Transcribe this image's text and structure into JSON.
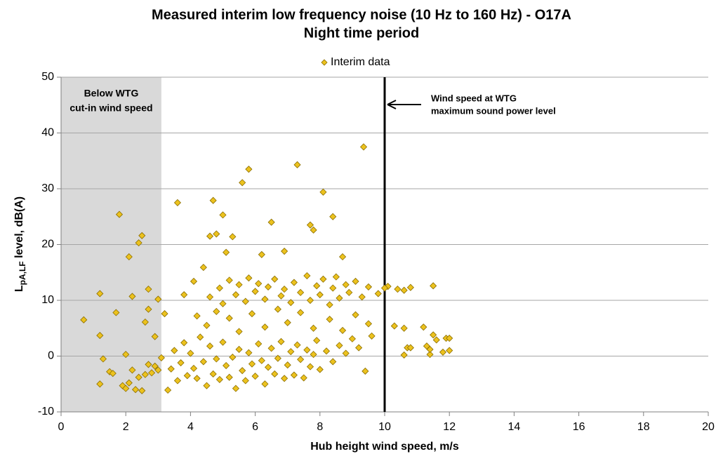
{
  "chart_data": {
    "type": "scatter",
    "title": "Measured interim low frequency noise (10 Hz to 160 Hz) - O17A",
    "subtitle": "Night time period",
    "xlabel": "Hub height wind speed, m/s",
    "ylabel_parts": [
      "L",
      "pA,LF",
      " level, dB(A)"
    ],
    "xlim": [
      0,
      20
    ],
    "ylim": [
      -10,
      50
    ],
    "xticks": [
      0,
      2,
      4,
      6,
      8,
      10,
      12,
      14,
      16,
      18,
      20
    ],
    "yticks": [
      -10,
      0,
      10,
      20,
      30,
      40,
      50
    ],
    "grid": true,
    "legend": "top",
    "shaded_region": [
      0,
      3.1
    ],
    "shaded_color": "#d9d9d9",
    "shaded_label": [
      "Below WTG",
      "cut-in wind speed"
    ],
    "reference_line_x": 10,
    "reference_label": [
      "Wind speed at WTG",
      "maximum sound power level"
    ],
    "x": [
      0.7,
      1.2,
      1.2,
      1.2,
      1.3,
      1.7,
      1.8,
      2.0,
      2.1,
      2.2,
      2.4,
      2.5,
      2.6,
      2.7,
      2.7,
      2.9,
      3.0,
      3.2,
      3.6,
      4.4,
      4.6,
      4.7,
      4.8,
      5.0,
      5.1,
      5.3,
      5.6,
      5.8,
      6.2,
      6.5,
      6.9,
      7.3,
      7.7,
      7.8,
      8.1,
      8.4,
      8.7,
      9.35,
      9.4,
      10.1,
      10.4,
      10.6,
      10.8,
      11.5,
      10.3,
      10.6,
      10.6,
      10.7,
      10.8,
      11.2,
      11.3,
      11.4,
      11.5,
      11.6,
      11.8,
      11.9,
      12.0,
      12.0,
      11.4,
      1.5,
      1.6,
      1.9,
      2.0,
      2.1,
      2.2,
      2.3,
      2.4,
      2.5,
      2.6,
      2.7,
      2.8,
      2.9,
      3.0,
      3.1,
      3.3,
      3.4,
      3.5,
      3.6,
      3.7,
      3.8,
      3.9,
      4.0,
      4.1,
      4.2,
      4.3,
      4.4,
      4.5,
      4.6,
      4.7,
      4.8,
      4.9,
      5.0,
      5.1,
      5.2,
      5.3,
      5.4,
      5.5,
      5.6,
      5.7,
      5.8,
      5.9,
      6.0,
      6.1,
      6.2,
      6.3,
      6.4,
      6.5,
      6.6,
      6.7,
      6.8,
      6.9,
      7.0,
      7.1,
      7.2,
      7.3,
      7.4,
      7.5,
      7.6,
      7.7,
      7.8,
      7.9,
      8.0,
      8.2,
      8.4,
      8.6,
      8.8,
      9.0,
      9.2,
      9.6,
      4.2,
      4.5,
      4.8,
      5.2,
      5.5,
      5.9,
      6.3,
      6.7,
      7.0,
      7.4,
      7.8,
      8.3,
      8.7,
      9.1,
      9.5,
      3.8,
      4.1,
      4.6,
      4.9,
      5.0,
      5.2,
      5.4,
      5.5,
      5.7,
      5.8,
      6.0,
      6.1,
      6.3,
      6.4,
      6.6,
      6.8,
      6.9,
      7.1,
      7.2,
      7.4,
      7.6,
      7.7,
      7.9,
      8.0,
      8.1,
      8.3,
      8.4,
      8.5,
      8.6,
      8.8,
      8.9,
      9.1,
      9.3,
      9.5,
      9.8,
      10.0
    ],
    "series": [
      {
        "name": "Interim data",
        "color": "#ecc21e",
        "edge_color": "#8a6d00",
        "values": [
          6.5,
          11.2,
          3.7,
          -5,
          -0.5,
          7.8,
          25.4,
          0.3,
          17.8,
          10.7,
          20.3,
          21.6,
          6.1,
          12,
          8.4,
          3.5,
          10.2,
          7.6,
          27.5,
          15.9,
          21.5,
          27.9,
          21.9,
          25.3,
          18.6,
          21.4,
          31.1,
          33.5,
          18.2,
          24,
          18.8,
          34.3,
          23.5,
          22.6,
          29.4,
          25,
          17.8,
          37.5,
          -2.7,
          12.5,
          12,
          11.8,
          12.3,
          12.6,
          5.4,
          5,
          0.2,
          1.5,
          1.5,
          5.2,
          1.8,
          0.3,
          3.8,
          2.9,
          0.7,
          3.2,
          3.2,
          1.0,
          1.2,
          -2.8,
          -3.1,
          -5.3,
          -5.8,
          -4.8,
          -2.5,
          -6.0,
          -3.8,
          -6.2,
          -3.3,
          -1.5,
          -3.0,
          -1.8,
          -2.5,
          -0.3,
          -6.1,
          -2.3,
          1.0,
          -4.4,
          -1.2,
          2.4,
          -3.5,
          0.5,
          -2.2,
          -4.0,
          3.4,
          -1.0,
          -5.3,
          1.8,
          -3.2,
          -0.5,
          -4.2,
          2.5,
          -1.7,
          -3.8,
          -0.2,
          -5.8,
          1.2,
          -2.6,
          -4.4,
          0.6,
          -1.4,
          -3.6,
          2.2,
          -0.8,
          -5.0,
          -2.0,
          1.4,
          -3.2,
          -0.4,
          2.6,
          -4.0,
          -1.6,
          0.8,
          -3.4,
          2.0,
          -0.6,
          -3.9,
          1.1,
          -1.9,
          0.3,
          2.8,
          -2.4,
          0.9,
          -1.0,
          1.9,
          0.5,
          3.1,
          1.5,
          3.6,
          7.2,
          5.5,
          8.0,
          6.8,
          4.4,
          7.6,
          5.2,
          8.4,
          6.0,
          7.8,
          5.0,
          6.6,
          4.6,
          7.4,
          5.8,
          11.0,
          13.4,
          10.6,
          12.2,
          9.4,
          13.6,
          11.0,
          12.8,
          9.8,
          14.0,
          11.6,
          13.0,
          10.2,
          12.4,
          13.8,
          10.8,
          12.0,
          9.6,
          13.2,
          11.4,
          14.4,
          10.0,
          12.6,
          11.0,
          13.8,
          9.2,
          12.2,
          14.2,
          10.4,
          12.8,
          11.4,
          13.4,
          10.6,
          12.4,
          11.2,
          12.2
        ]
      }
    ]
  }
}
